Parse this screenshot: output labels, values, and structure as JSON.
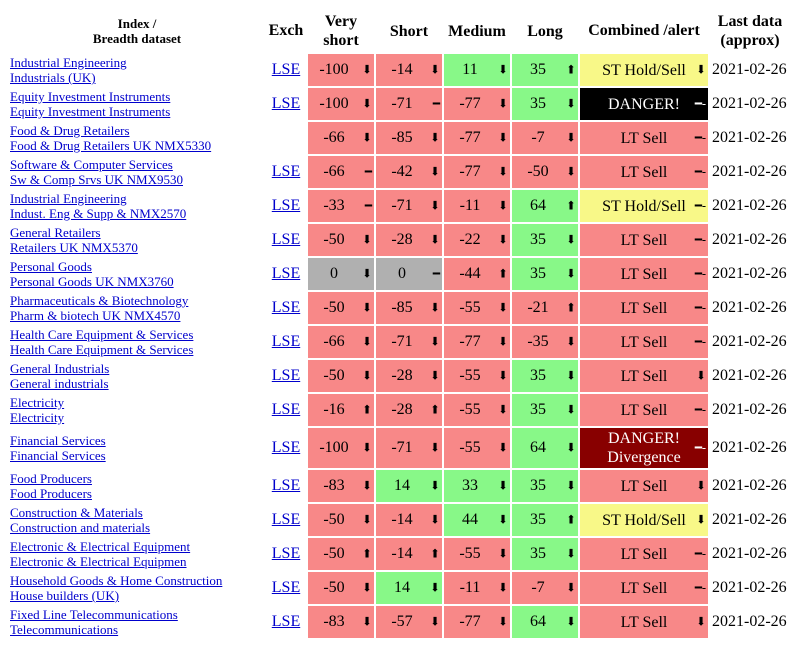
{
  "header": {
    "index_line1": "Index /",
    "index_line2": "Breadth dataset",
    "exch": "Exch",
    "very_short_l1": "Very",
    "very_short_l2": "short",
    "short": "Short",
    "medium": "Medium",
    "long": "Long",
    "combined": "Combined /alert",
    "last_l1": "Last data",
    "last_l2": "(approx)"
  },
  "colors": {
    "red": "#f88888",
    "green": "#88f888",
    "grey": "#b0b0b0",
    "yellow": "#f8f888",
    "black": "#000000",
    "darkred": "#880000",
    "link": "#0000cc"
  },
  "rows": [
    {
      "name1": "Industrial Engineering",
      "name2": "Industrials (UK)",
      "exch": "LSE",
      "vs": {
        "v": "-100",
        "a": "⬇",
        "c": "red"
      },
      "s": {
        "v": "-14",
        "a": "⬇",
        "c": "red"
      },
      "m": {
        "v": "11",
        "a": "⬇",
        "c": "green"
      },
      "l": {
        "v": "35",
        "a": "⬆",
        "c": "green"
      },
      "comb": {
        "t1": "ST Hold/Sell",
        "t2": "",
        "a": "⬇",
        "c": "yellow"
      },
      "date": "2021-02-26"
    },
    {
      "name1": "Equity Investment Instruments",
      "name2": "Equity Investment Instruments",
      "exch": "LSE",
      "vs": {
        "v": "-100",
        "a": "⬇",
        "c": "red"
      },
      "s": {
        "v": "-71",
        "a": "━",
        "c": "red"
      },
      "m": {
        "v": "-77",
        "a": "⬇",
        "c": "red"
      },
      "l": {
        "v": "35",
        "a": "⬇",
        "c": "green"
      },
      "comb": {
        "t1": "DANGER!",
        "t2": "",
        "a": "━-",
        "c": "black"
      },
      "date": "2021-02-26"
    },
    {
      "name1": "Food & Drug Retailers",
      "name2": "Food & Drug Retailers UK NMX5330",
      "exch": "",
      "vs": {
        "v": "-66",
        "a": "⬇",
        "c": "red"
      },
      "s": {
        "v": "-85",
        "a": "⬇",
        "c": "red"
      },
      "m": {
        "v": "-77",
        "a": "⬇",
        "c": "red"
      },
      "l": {
        "v": "-7",
        "a": "⬇",
        "c": "red"
      },
      "comb": {
        "t1": "LT Sell",
        "t2": "",
        "a": "━-",
        "c": "red"
      },
      "date": "2021-02-26"
    },
    {
      "name1": "Software & Computer Services",
      "name2": "Sw & Comp Srvs UK NMX9530",
      "exch": "LSE",
      "vs": {
        "v": "-66",
        "a": "━",
        "c": "red"
      },
      "s": {
        "v": "-42",
        "a": "⬇",
        "c": "red"
      },
      "m": {
        "v": "-77",
        "a": "⬇",
        "c": "red"
      },
      "l": {
        "v": "-50",
        "a": "⬇",
        "c": "red"
      },
      "comb": {
        "t1": "LT Sell",
        "t2": "",
        "a": "━-",
        "c": "red"
      },
      "date": "2021-02-26"
    },
    {
      "name1": "Industrial Engineering",
      "name2": "Indust. Eng & Supp & NMX2570",
      "exch": "LSE",
      "vs": {
        "v": "-33",
        "a": "━",
        "c": "red"
      },
      "s": {
        "v": "-71",
        "a": "⬇",
        "c": "red"
      },
      "m": {
        "v": "-11",
        "a": "⬇",
        "c": "red"
      },
      "l": {
        "v": "64",
        "a": "⬆",
        "c": "green"
      },
      "comb": {
        "t1": "ST Hold/Sell",
        "t2": "",
        "a": "━-",
        "c": "yellow"
      },
      "date": "2021-02-26"
    },
    {
      "name1": "General Retailers",
      "name2": "Retailers UK NMX5370",
      "exch": "LSE",
      "vs": {
        "v": "-50",
        "a": "⬇",
        "c": "red"
      },
      "s": {
        "v": "-28",
        "a": "⬇",
        "c": "red"
      },
      "m": {
        "v": "-22",
        "a": "⬇",
        "c": "red"
      },
      "l": {
        "v": "35",
        "a": "⬇",
        "c": "green"
      },
      "comb": {
        "t1": "LT Sell",
        "t2": "",
        "a": "━-",
        "c": "red"
      },
      "date": "2021-02-26"
    },
    {
      "name1": "Personal Goods",
      "name2": "Personal Goods UK NMX3760",
      "exch": "LSE",
      "vs": {
        "v": "0",
        "a": "⬇",
        "c": "grey"
      },
      "s": {
        "v": "0",
        "a": "━",
        "c": "grey"
      },
      "m": {
        "v": "-44",
        "a": "⬆",
        "c": "red"
      },
      "l": {
        "v": "35",
        "a": "⬇",
        "c": "green"
      },
      "comb": {
        "t1": "LT Sell",
        "t2": "",
        "a": "━-",
        "c": "red"
      },
      "date": "2021-02-26"
    },
    {
      "name1": "Pharmaceuticals & Biotechnology",
      "name2": "Pharm & biotech UK NMX4570",
      "exch": "LSE",
      "vs": {
        "v": "-50",
        "a": "⬇",
        "c": "red"
      },
      "s": {
        "v": "-85",
        "a": "⬇",
        "c": "red"
      },
      "m": {
        "v": "-55",
        "a": "⬇",
        "c": "red"
      },
      "l": {
        "v": "-21",
        "a": "⬆",
        "c": "red"
      },
      "comb": {
        "t1": "LT Sell",
        "t2": "",
        "a": "━-",
        "c": "red"
      },
      "date": "2021-02-26"
    },
    {
      "name1": "Health Care Equipment & Services",
      "name2": "Health Care Equipment & Services",
      "exch": "LSE",
      "vs": {
        "v": "-66",
        "a": "⬇",
        "c": "red"
      },
      "s": {
        "v": "-71",
        "a": "⬇",
        "c": "red"
      },
      "m": {
        "v": "-77",
        "a": "⬇",
        "c": "red"
      },
      "l": {
        "v": "-35",
        "a": "⬇",
        "c": "red"
      },
      "comb": {
        "t1": "LT Sell",
        "t2": "",
        "a": "━-",
        "c": "red"
      },
      "date": "2021-02-26"
    },
    {
      "name1": "General Industrials",
      "name2": "General industrials",
      "exch": "LSE",
      "vs": {
        "v": "-50",
        "a": "⬇",
        "c": "red"
      },
      "s": {
        "v": "-28",
        "a": "⬇",
        "c": "red"
      },
      "m": {
        "v": "-55",
        "a": "⬇",
        "c": "red"
      },
      "l": {
        "v": "35",
        "a": "⬇",
        "c": "green"
      },
      "comb": {
        "t1": "LT Sell",
        "t2": "",
        "a": "⬇",
        "c": "red"
      },
      "date": "2021-02-26"
    },
    {
      "name1": "Electricity",
      "name2": "Electricity",
      "exch": "LSE",
      "vs": {
        "v": "-16",
        "a": "⬆",
        "c": "red"
      },
      "s": {
        "v": "-28",
        "a": "⬆",
        "c": "red"
      },
      "m": {
        "v": "-55",
        "a": "⬇",
        "c": "red"
      },
      "l": {
        "v": "35",
        "a": "⬇",
        "c": "green"
      },
      "comb": {
        "t1": "LT Sell",
        "t2": "",
        "a": "━-",
        "c": "red"
      },
      "date": "2021-02-26"
    },
    {
      "name1": "Financial Services",
      "name2": "Financial Services",
      "exch": "LSE",
      "tall": true,
      "vs": {
        "v": "-100",
        "a": "⬇",
        "c": "red"
      },
      "s": {
        "v": "-71",
        "a": "⬇",
        "c": "red"
      },
      "m": {
        "v": "-55",
        "a": "⬇",
        "c": "red"
      },
      "l": {
        "v": "64",
        "a": "⬇",
        "c": "green"
      },
      "comb": {
        "t1": "DANGER!",
        "t2": "Divergence",
        "a": "━-",
        "c": "darkred"
      },
      "date": "2021-02-26"
    },
    {
      "name1": "Food Producers",
      "name2": "Food Producers",
      "exch": "LSE",
      "vs": {
        "v": "-83",
        "a": "⬇",
        "c": "red"
      },
      "s": {
        "v": "14",
        "a": "⬇",
        "c": "green"
      },
      "m": {
        "v": "33",
        "a": "⬇",
        "c": "green"
      },
      "l": {
        "v": "35",
        "a": "⬇",
        "c": "green"
      },
      "comb": {
        "t1": "LT Sell",
        "t2": "",
        "a": "⬇",
        "c": "red"
      },
      "date": "2021-02-26"
    },
    {
      "name1": "Construction & Materials",
      "name2": "Construction and materials",
      "exch": "LSE",
      "vs": {
        "v": "-50",
        "a": "⬇",
        "c": "red"
      },
      "s": {
        "v": "-14",
        "a": "⬇",
        "c": "red"
      },
      "m": {
        "v": "44",
        "a": "⬇",
        "c": "green"
      },
      "l": {
        "v": "35",
        "a": "⬆",
        "c": "green"
      },
      "comb": {
        "t1": "ST Hold/Sell",
        "t2": "",
        "a": "⬇",
        "c": "yellow"
      },
      "date": "2021-02-26"
    },
    {
      "name1": "Electronic & Electrical Equipment",
      "name2": "Electronic & Electrical Equipmen",
      "exch": "LSE",
      "vs": {
        "v": "-50",
        "a": "⬆",
        "c": "red"
      },
      "s": {
        "v": "-14",
        "a": "⬆",
        "c": "red"
      },
      "m": {
        "v": "-55",
        "a": "⬇",
        "c": "red"
      },
      "l": {
        "v": "35",
        "a": "⬇",
        "c": "green"
      },
      "comb": {
        "t1": "LT Sell",
        "t2": "",
        "a": "━-",
        "c": "red"
      },
      "date": "2021-02-26"
    },
    {
      "name1": "Household Goods & Home Construction",
      "name2": "House builders (UK)",
      "exch": "LSE",
      "vs": {
        "v": "-50",
        "a": "⬇",
        "c": "red"
      },
      "s": {
        "v": "14",
        "a": "⬇",
        "c": "green"
      },
      "m": {
        "v": "-11",
        "a": "⬇",
        "c": "red"
      },
      "l": {
        "v": "-7",
        "a": "⬇",
        "c": "red"
      },
      "comb": {
        "t1": "LT Sell",
        "t2": "",
        "a": "━-",
        "c": "red"
      },
      "date": "2021-02-26"
    },
    {
      "name1": "Fixed Line Telecommunications",
      "name2": "Telecommunications",
      "exch": "LSE",
      "vs": {
        "v": "-83",
        "a": "⬇",
        "c": "red"
      },
      "s": {
        "v": "-57",
        "a": "⬇",
        "c": "red"
      },
      "m": {
        "v": "-77",
        "a": "⬇",
        "c": "red"
      },
      "l": {
        "v": "64",
        "a": "⬇",
        "c": "green"
      },
      "comb": {
        "t1": "LT Sell",
        "t2": "",
        "a": "⬇",
        "c": "red"
      },
      "date": "2021-02-26"
    }
  ]
}
